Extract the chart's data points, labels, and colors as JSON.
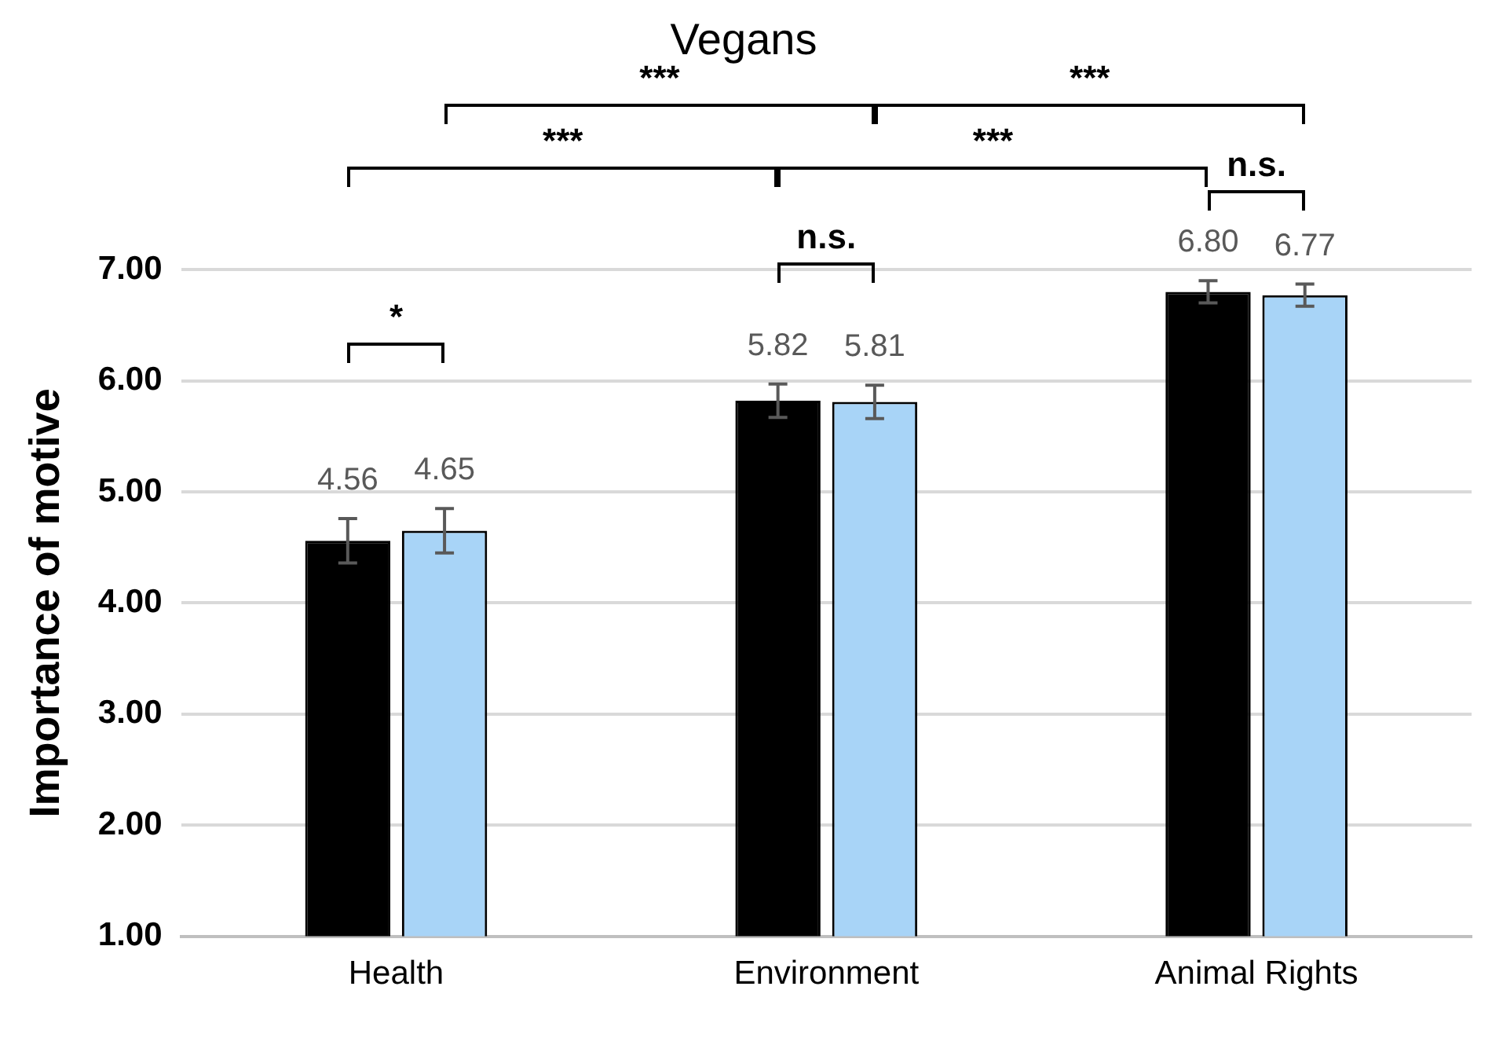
{
  "chart_data": {
    "type": "bar",
    "title": "Vegans",
    "ylabel": "Importance of motive",
    "categories": [
      "Health",
      "Environment",
      "Animal Rights"
    ],
    "series": [
      {
        "color": "#000000",
        "values": [
          4.56,
          5.82,
          6.8
        ],
        "errors": [
          0.2,
          0.15,
          0.1
        ],
        "value_labels": [
          "4.56",
          "5.82",
          "6.80"
        ]
      },
      {
        "color": "#a8d4f7",
        "values": [
          4.65,
          5.81,
          6.77
        ],
        "errors": [
          0.2,
          0.15,
          0.1
        ],
        "value_labels": [
          "4.65",
          "5.81",
          "6.77"
        ]
      }
    ],
    "ylim": [
      1,
      7
    ],
    "yticks": [
      {
        "value": 1,
        "label": "1.00"
      },
      {
        "value": 2,
        "label": "2.00"
      },
      {
        "value": 3,
        "label": "3.00"
      },
      {
        "value": 4,
        "label": "4.00"
      },
      {
        "value": 5,
        "label": "5.00"
      },
      {
        "value": 6,
        "label": "6.00"
      },
      {
        "value": 7,
        "label": "7.00"
      }
    ],
    "grid": "y",
    "annotations": [
      "***",
      "***",
      "***",
      "***",
      "n.s.",
      "n.s.",
      "*"
    ]
  }
}
